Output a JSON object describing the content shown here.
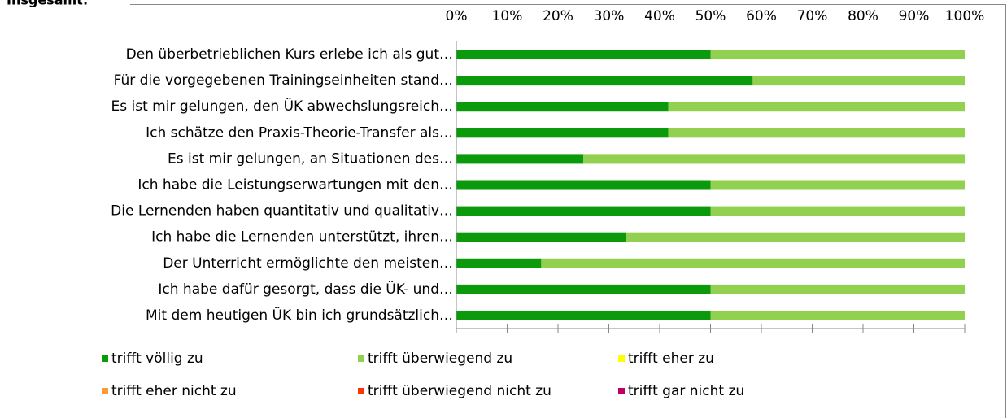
{
  "chart_data": {
    "type": "stacked_bar_horizontal",
    "title": "Insgesamt:",
    "categories": [
      "Den überbetrieblichen Kurs erlebe ich als gut…",
      "Für die vorgegebenen Trainingseinheiten stand…",
      "Es ist mir gelungen, den ÜK abwechslungsreich…",
      "Ich schätze den Praxis-Theorie-Transfer als…",
      "Es ist mir gelungen, an Situationen des…",
      "Ich habe die Leistungserwartungen mit den…",
      "Die Lernenden haben quantitativ und qualitativ…",
      "Ich habe die Lernenden unterstützt, ihren…",
      "Der Unterricht ermöglichte den meisten…",
      "Ich habe dafür gesorgt, dass die ÜK- und…",
      "Mit dem heutigen ÜK bin ich grundsätzlich…"
    ],
    "series": [
      {
        "name": "trifft völlig zu",
        "color": "#0b9a0b",
        "values": [
          50,
          58.3,
          41.7,
          41.7,
          25,
          50,
          50,
          33.3,
          16.7,
          50,
          50
        ]
      },
      {
        "name": "trifft überwiegend zu",
        "color": "#92d050",
        "values": [
          50,
          41.7,
          58.3,
          58.3,
          75,
          50,
          50,
          66.7,
          83.3,
          50,
          50
        ]
      },
      {
        "name": "trifft eher zu",
        "color": "#ffff00",
        "values": [
          0,
          0,
          0,
          0,
          0,
          0,
          0,
          0,
          0,
          0,
          0
        ]
      },
      {
        "name": "trifft eher nicht zu",
        "color": "#ff9933",
        "values": [
          0,
          0,
          0,
          0,
          0,
          0,
          0,
          0,
          0,
          0,
          0
        ]
      },
      {
        "name": "trifft überwiegend nicht zu",
        "color": "#ff3300",
        "values": [
          0,
          0,
          0,
          0,
          0,
          0,
          0,
          0,
          0,
          0,
          0
        ]
      },
      {
        "name": "trifft gar nicht zu",
        "color": "#c00060",
        "values": [
          0,
          0,
          0,
          0,
          0,
          0,
          0,
          0,
          0,
          0,
          0
        ]
      }
    ],
    "xlim": [
      0,
      100
    ],
    "xticks": [
      {
        "value": 0,
        "label": "0%"
      },
      {
        "value": 10,
        "label": "10%"
      },
      {
        "value": 20,
        "label": "20%"
      },
      {
        "value": 30,
        "label": "30%"
      },
      {
        "value": 40,
        "label": "40%"
      },
      {
        "value": 50,
        "label": "50%"
      },
      {
        "value": 60,
        "label": "60%"
      },
      {
        "value": 70,
        "label": "70%"
      },
      {
        "value": 80,
        "label": "80%"
      },
      {
        "value": 90,
        "label": "90%"
      },
      {
        "value": 100,
        "label": "100%"
      }
    ]
  }
}
